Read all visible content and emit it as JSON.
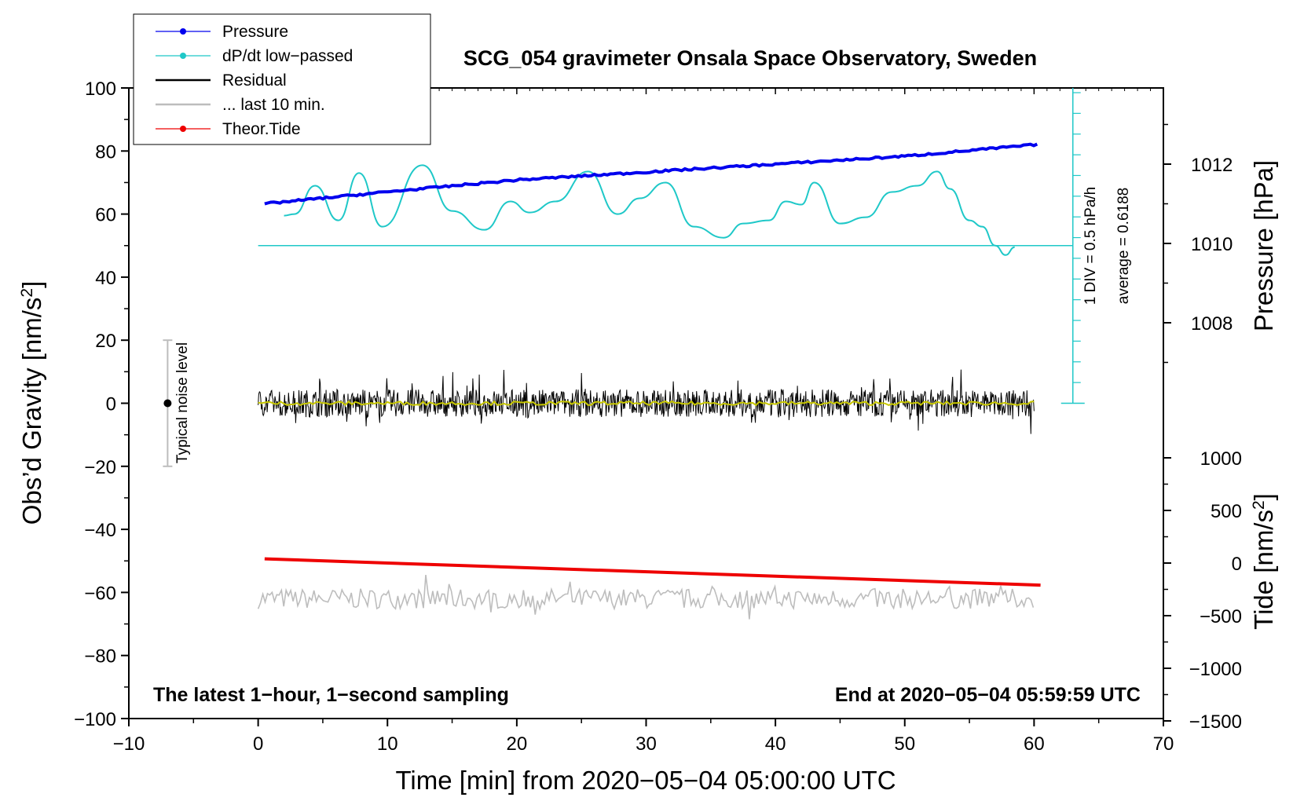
{
  "colors": {
    "pressure": "#0000ee",
    "dpdt": "#1fc8c8",
    "residual": "#000000",
    "last10": "#bdbdbd",
    "tide": "#ee0000",
    "residual_smooth": "#c8c800",
    "noise_bar": "#bdbdbd"
  },
  "chart_data": {
    "type": "line",
    "title": "SCG_054 gravimeter Onsala Space Observatory, Sweden",
    "xlabel": "Time [min] from 2020−05−04 05:00:00 UTC",
    "ylabel_left": "Obs’d Gravity [nm/s",
    "ylabel_left_sup": "2",
    "ylabel_left_end": "]",
    "ylabel_pressure": "Pressure [hPa]",
    "ylabel_tide": "Tide [nm/s",
    "ylabel_tide_sup": "2",
    "ylabel_tide_end": "]",
    "xlim": [
      -10,
      70
    ],
    "ylim": [
      -100,
      100
    ],
    "x_ticks": [
      "−10",
      "0",
      "10",
      "20",
      "30",
      "40",
      "50",
      "60",
      "70"
    ],
    "y_ticks": [
      "100",
      "80",
      "60",
      "40",
      "20",
      "0",
      "−20",
      "−40",
      "−60",
      "−80",
      "−100"
    ],
    "pressure_axis": {
      "range": [
        1006,
        1014
      ],
      "ticks": [
        "1012",
        "1010",
        "1008"
      ]
    },
    "tide_axis": {
      "range": [
        -1500,
        1000
      ],
      "ticks": [
        "1000",
        "500",
        "0",
        "−500",
        "−1000",
        "−1500"
      ]
    },
    "legend": [
      {
        "label": "Pressure",
        "key": "pressure",
        "marker": true
      },
      {
        "label": "dP/dt low−passed",
        "key": "dpdt",
        "marker": true
      },
      {
        "label": "Residual",
        "key": "residual",
        "marker": false
      },
      {
        "label": "... last 10 min.",
        "key": "last10",
        "marker": false
      },
      {
        "label": "Theor.Tide",
        "key": "tide",
        "marker": true
      }
    ],
    "series": [
      {
        "name": "Pressure",
        "unit": "hPa",
        "x": [
          0.5,
          10,
          20,
          30,
          40,
          50,
          60.5
        ],
        "values": [
          1011.0,
          1011.3,
          1011.6,
          1011.8,
          1012.0,
          1012.2,
          1012.5
        ]
      },
      {
        "name": "dP/dt low-passed",
        "unit": "nm/s2 plot units",
        "x": [
          2,
          2.8,
          4.4,
          6.2,
          7.8,
          9.6,
          12.7,
          15,
          17.5,
          19.5,
          21,
          23,
          25.5,
          27.8,
          29.5,
          31.5,
          33.7,
          36,
          37.5,
          39.5,
          40.8,
          42,
          43,
          45,
          47,
          49,
          51,
          52.5,
          53.5,
          55,
          56,
          57,
          57.8,
          58.5
        ],
        "values": [
          59.5,
          60,
          69,
          58,
          73,
          56,
          75.5,
          61,
          55,
          64,
          60.5,
          64,
          73.5,
          60,
          65,
          70,
          56,
          52.5,
          57,
          58,
          64,
          63,
          70,
          57,
          59,
          67,
          69,
          73.5,
          68,
          58,
          56,
          50,
          47,
          49.5
        ]
      },
      {
        "name": "dP/dt average line",
        "x": [
          0,
          63
        ],
        "values": [
          50,
          50
        ]
      },
      {
        "name": "Residual",
        "x_range": [
          0,
          60
        ],
        "mean": 0,
        "spread": 4
      },
      {
        "name": "... last 10 min.",
        "x_range": [
          0,
          60
        ],
        "mean": -62,
        "spread": 4
      },
      {
        "name": "Theor.Tide",
        "unit": "nm/s2",
        "x": [
          0.5,
          60.5
        ],
        "values": [
          40,
          -210
        ]
      }
    ],
    "noise_bar": {
      "x": -7,
      "center": 0,
      "low": -20,
      "high": 20,
      "label": "Typical noise level"
    },
    "dpdt_scale": {
      "label1": "1 DIV = 0.5 hPa/h",
      "label2": "average = 0.6188"
    }
  },
  "notes": {
    "left": "The latest 1−hour, 1−second sampling",
    "right": "End at 2020−05−04 05:59:59 UTC"
  }
}
